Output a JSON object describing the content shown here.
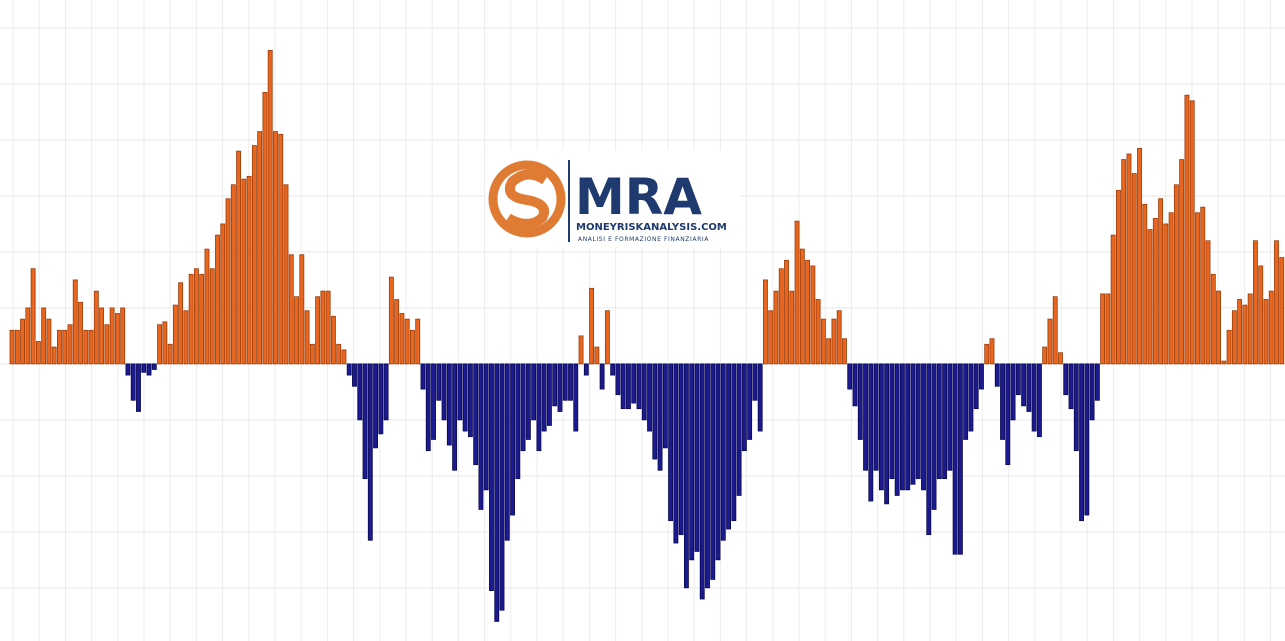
{
  "chart_data": {
    "type": "bar",
    "values": [
      0.6,
      0.6,
      0.8,
      1.0,
      1.7,
      0.4,
      1.0,
      0.8,
      0.3,
      0.6,
      0.6,
      0.7,
      1.5,
      1.1,
      0.6,
      0.6,
      1.3,
      1.0,
      0.7,
      1.0,
      0.9,
      1.0,
      -0.2,
      -0.65,
      -0.85,
      -0.15,
      -0.2,
      -0.1,
      0.7,
      0.75,
      0.35,
      1.05,
      1.45,
      0.95,
      1.6,
      1.7,
      1.6,
      2.05,
      1.7,
      2.3,
      2.5,
      2.95,
      3.2,
      3.8,
      3.3,
      3.35,
      3.9,
      4.15,
      4.85,
      5.6,
      4.15,
      4.1,
      3.2,
      1.95,
      1.2,
      1.95,
      0.95,
      0.35,
      1.2,
      1.3,
      1.3,
      0.85,
      0.35,
      0.25,
      -0.2,
      -0.4,
      -1.0,
      -2.05,
      -3.15,
      -1.5,
      -1.25,
      -1.0,
      1.55,
      1.15,
      0.9,
      0.8,
      0.6,
      0.8,
      -0.45,
      -1.55,
      -1.35,
      -0.65,
      -1.0,
      -1.45,
      -1.9,
      -1.0,
      -1.2,
      -1.3,
      -1.8,
      -2.6,
      -2.25,
      -4.05,
      -4.6,
      -4.4,
      -3.15,
      -2.7,
      -2.05,
      -1.55,
      -1.35,
      -1.0,
      -1.55,
      -1.2,
      -1.1,
      -0.75,
      -0.85,
      -0.65,
      -0.65,
      -1.2,
      0.5,
      -0.2,
      1.35,
      0.3,
      -0.45,
      0.95,
      -0.2,
      -0.55,
      -0.8,
      -0.8,
      -0.7,
      -0.8,
      -1.0,
      -1.2,
      -1.7,
      -1.9,
      -1.5,
      -2.8,
      -3.2,
      -3.05,
      -4.0,
      -3.5,
      -3.35,
      -4.2,
      -4.0,
      -3.85,
      -3.5,
      -3.15,
      -2.95,
      -2.8,
      -2.35,
      -1.55,
      -1.35,
      -0.65,
      -1.2,
      1.5,
      0.95,
      1.3,
      1.7,
      1.85,
      1.3,
      2.55,
      2.05,
      1.85,
      1.75,
      1.15,
      0.8,
      0.45,
      0.8,
      0.95,
      0.45,
      -0.45,
      -0.75,
      -1.35,
      -1.9,
      -2.45,
      -1.9,
      -2.25,
      -2.5,
      -2.05,
      -2.35,
      -2.25,
      -2.25,
      -2.15,
      -2.05,
      -2.25,
      -3.05,
      -2.6,
      -2.05,
      -2.05,
      -1.9,
      -3.4,
      -3.4,
      -1.35,
      -1.2,
      -0.8,
      -0.45,
      0.35,
      0.45,
      -0.4,
      -1.35,
      -1.8,
      -1.0,
      -0.55,
      -0.75,
      -0.85,
      -1.2,
      -1.3,
      0.3,
      0.8,
      1.2,
      0.2,
      -0.55,
      -0.8,
      -1.55,
      -2.8,
      -2.7,
      -1.0,
      -0.65,
      1.25,
      1.25,
      2.3,
      3.1,
      3.65,
      3.75,
      3.4,
      3.85,
      2.85,
      2.4,
      2.6,
      2.95,
      2.5,
      2.7,
      3.2,
      3.65,
      4.8,
      4.7,
      2.7,
      2.8,
      2.2,
      1.6,
      1.3,
      0.05,
      0.6,
      0.95,
      1.15,
      1.05,
      1.25,
      2.2,
      1.75,
      1.15,
      1.3,
      2.2,
      1.9
    ],
    "positive_color": "#e8661f",
    "negative_color": "#1b1b8f",
    "ylim": [
      -4.95,
      6.5
    ],
    "yticks": [
      -4,
      -3,
      -2,
      -1,
      0,
      1,
      2,
      3,
      4,
      5,
      6
    ],
    "grid": true
  },
  "logo": {
    "mark": "MRA",
    "site": "MONEYRISKANALYSIS.COM",
    "tagline": "ANALISI E FORMAZIONE FINANZIARIA"
  }
}
